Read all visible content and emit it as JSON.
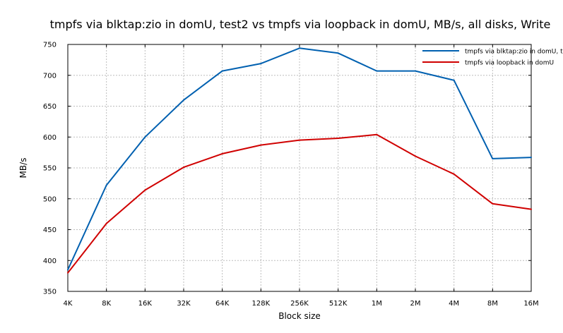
{
  "chart_data": {
    "type": "line",
    "title": "tmpfs via blktap:zio in domU, test2 vs tmpfs via loopback in domU, MB/s, all disks, Write",
    "xlabel": "Block size",
    "ylabel": "MB/s",
    "categories": [
      "4K",
      "8K",
      "16K",
      "32K",
      "64K",
      "128K",
      "256K",
      "512K",
      "1M",
      "2M",
      "4M",
      "8M",
      "16M"
    ],
    "ylim": [
      350,
      750
    ],
    "yticks": [
      350,
      400,
      450,
      500,
      550,
      600,
      650,
      700,
      750
    ],
    "grid": true,
    "legend_position": "top-right",
    "series": [
      {
        "name": "tmpfs via blktap:zio in domU, t",
        "color": "#0060b0",
        "values": [
          385,
          522,
          600,
          660,
          707,
          719,
          744,
          736,
          707,
          707,
          692,
          565,
          567
        ]
      },
      {
        "name": "tmpfs via loopback in domU",
        "color": "#d00000",
        "values": [
          380,
          460,
          514,
          551,
          573,
          587,
          595,
          598,
          604,
          569,
          540,
          492,
          483
        ]
      }
    ]
  }
}
